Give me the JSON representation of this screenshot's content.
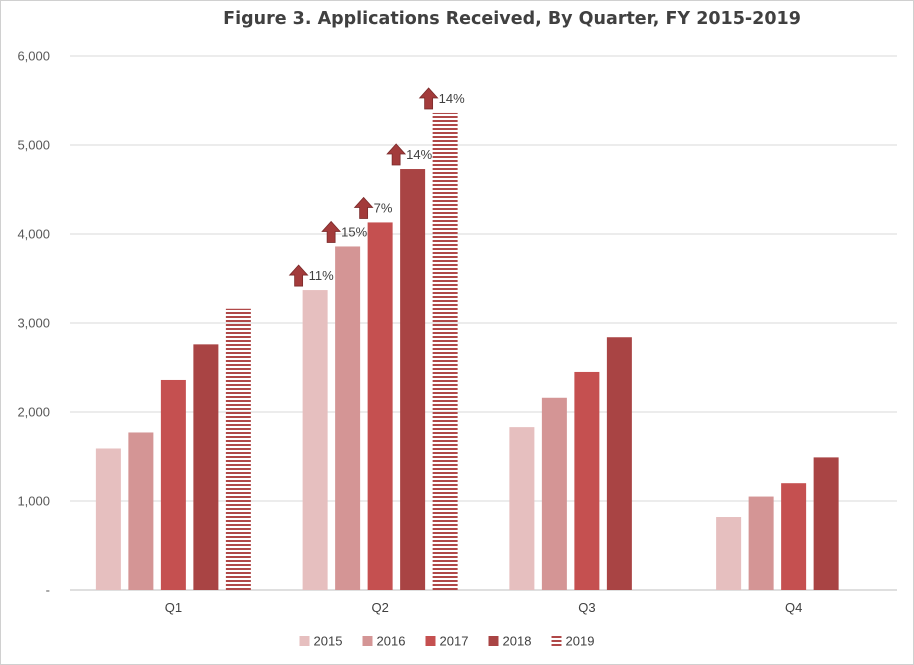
{
  "chart_data": {
    "type": "bar",
    "title": "Figure 3. Applications Received, By Quarter, FY 2015-2019",
    "categories": [
      "Q1",
      "Q2",
      "Q3",
      "Q4"
    ],
    "ylim": [
      0,
      6000
    ],
    "yticks": [
      0,
      1000,
      2000,
      3000,
      4000,
      5000,
      6000
    ],
    "ytick_labels": [
      "-",
      "1,000",
      "2,000",
      "3,000",
      "4,000",
      "5,000",
      "6,000"
    ],
    "grid": true,
    "legend_position": "bottom",
    "series": [
      {
        "name": "2015",
        "color": "#e6bfbf",
        "pattern": "solid",
        "values": [
          1590,
          3370,
          1830,
          820
        ]
      },
      {
        "name": "2016",
        "color": "#d49595",
        "pattern": "solid",
        "values": [
          1770,
          3860,
          2160,
          1050
        ]
      },
      {
        "name": "2017",
        "color": "#c55050",
        "pattern": "solid",
        "values": [
          2360,
          4130,
          2450,
          1200
        ]
      },
      {
        "name": "2018",
        "color": "#a94444",
        "pattern": "solid",
        "values": [
          2760,
          4730,
          2840,
          1490
        ]
      },
      {
        "name": "2019",
        "color": "#b04848",
        "pattern": "horizontal-stripes",
        "values": [
          3160,
          5360,
          null,
          null
        ]
      }
    ],
    "annotations": [
      {
        "category": "Q2",
        "series": "2015",
        "text": "11%",
        "icon": "up-arrow-icon"
      },
      {
        "category": "Q2",
        "series": "2016",
        "text": "15%",
        "icon": "up-arrow-icon"
      },
      {
        "category": "Q2",
        "series": "2017",
        "text": "7%",
        "icon": "up-arrow-icon"
      },
      {
        "category": "Q2",
        "series": "2018",
        "text": "14%",
        "icon": "up-arrow-icon"
      },
      {
        "category": "Q2",
        "series": "2019",
        "text": "14%",
        "icon": "up-arrow-icon"
      }
    ],
    "colors": {
      "grid": "#d9d9d9",
      "axis": "#bfbfbf",
      "arrow": "#a33b3b"
    }
  }
}
